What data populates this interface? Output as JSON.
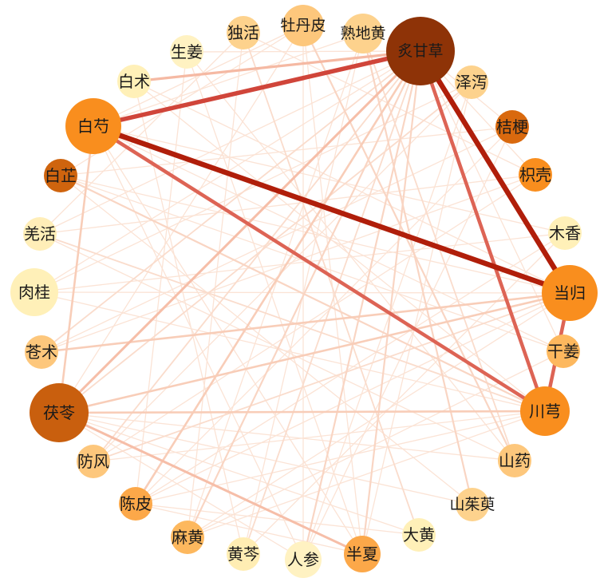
{
  "nodes": [
    {
      "id": "zhigancao",
      "label": "炙甘草",
      "color": "#8e3307"
    },
    {
      "id": "zexie",
      "label": "泽泻",
      "color": "#fdd28d"
    },
    {
      "id": "jiegeng",
      "label": "桔梗",
      "color": "#d9690e"
    },
    {
      "id": "zhiqiao",
      "label": "枳壳",
      "color": "#f98e1e"
    },
    {
      "id": "muxiang",
      "label": "木香",
      "color": "#fff0b8"
    },
    {
      "id": "danggui",
      "label": "当归",
      "color": "#f98e1e"
    },
    {
      "id": "ganjiang",
      "label": "干姜",
      "color": "#fdb85e"
    },
    {
      "id": "chuanxiong",
      "label": "川芎",
      "color": "#f98e1e"
    },
    {
      "id": "shanyao",
      "label": "山药",
      "color": "#fdc77c"
    },
    {
      "id": "shanzhuyu",
      "label": "山茱萸",
      "color": "#fdd28d"
    },
    {
      "id": "dahuang",
      "label": "大黄",
      "color": "#fff0b8"
    },
    {
      "id": "banxia",
      "label": "半夏",
      "color": "#fca849"
    },
    {
      "id": "renshen",
      "label": "人参",
      "color": "#fff2c2"
    },
    {
      "id": "huangqin",
      "label": "黄芩",
      "color": "#ffedb3"
    },
    {
      "id": "mahuang",
      "label": "麻黄",
      "color": "#fdb85e"
    },
    {
      "id": "chenpi",
      "label": "陈皮",
      "color": "#fca849"
    },
    {
      "id": "fangfeng",
      "label": "防风",
      "color": "#fdc77c"
    },
    {
      "id": "fuling",
      "label": "茯苓",
      "color": "#c95f0e"
    },
    {
      "id": "cangzhu",
      "label": "苍术",
      "color": "#fdc77c"
    },
    {
      "id": "rougui",
      "label": "肉桂",
      "color": "#fff0b8"
    },
    {
      "id": "qianghuo",
      "label": "羌活",
      "color": "#ffeeb8"
    },
    {
      "id": "baizhi",
      "label": "白芷",
      "color": "#cf640e"
    },
    {
      "id": "baishao",
      "label": "白芍",
      "color": "#f98e1e"
    },
    {
      "id": "baizhu",
      "label": "白术",
      "color": "#fff0b8"
    },
    {
      "id": "shengjiang",
      "label": "生姜",
      "color": "#fff2c2"
    },
    {
      "id": "duhuo",
      "label": "独活",
      "color": "#fdd28d"
    },
    {
      "id": "mudanpi",
      "label": "牡丹皮",
      "color": "#fdc77c"
    },
    {
      "id": "shudihuang",
      "label": "熟地黄",
      "color": "#fdd28d"
    }
  ],
  "edges": [
    {
      "a": "baishao",
      "b": "danggui",
      "color": "#b01e0a"
    },
    {
      "a": "zhigancao",
      "b": "danggui",
      "color": "#b01e0a"
    },
    {
      "a": "zhigancao",
      "b": "baishao",
      "color": "#d0453a"
    },
    {
      "a": "baishao",
      "b": "chuanxiong",
      "color": "#dd6455"
    },
    {
      "a": "zhigancao",
      "b": "chuanxiong",
      "color": "#dd6455"
    },
    {
      "a": "danggui",
      "b": "chuanxiong",
      "color": "#dd6455"
    },
    {
      "a": "zhigancao",
      "b": "baizhu",
      "color": "#f5b9a3"
    },
    {
      "a": "zhigancao",
      "b": "fuling",
      "color": "#f6bea8"
    },
    {
      "a": "baishao",
      "b": "fuling",
      "color": "#f8cdb8"
    },
    {
      "a": "fuling",
      "b": "danggui",
      "color": "#f8cdb8"
    },
    {
      "a": "cangzhu",
      "b": "danggui",
      "color": "#f8cdb8"
    },
    {
      "a": "fuling",
      "b": "chuanxiong",
      "color": "#f8cdb8"
    },
    {
      "a": "fuling",
      "b": "banxia",
      "color": "#f6bea8"
    },
    {
      "a": "chenpi",
      "b": "zhigancao",
      "color": "#f8cdb8"
    },
    {
      "a": "baizhi",
      "b": "chuanxiong",
      "color": "#f9d5c3"
    },
    {
      "a": "qianghuo",
      "b": "chuanxiong",
      "color": "#fadccc"
    },
    {
      "a": "mahuang",
      "b": "zhigancao",
      "color": "#f9d5c3"
    },
    {
      "a": "renshen",
      "b": "zhigancao",
      "color": "#f9d5c3"
    },
    {
      "a": "banxia",
      "b": "zhigancao",
      "color": "#f9d5c3"
    },
    {
      "a": "huangqin",
      "b": "zhigancao",
      "color": "#fadccc"
    },
    {
      "a": "fangfeng",
      "b": "danggui",
      "color": "#fadccc"
    },
    {
      "a": "mudanpi",
      "b": "shanyao",
      "color": "#f9d5c3"
    },
    {
      "a": "shudihuang",
      "b": "shanzhuyu",
      "color": "#f9d5c3"
    },
    {
      "a": "shudihuang",
      "b": "shanyao",
      "color": "#fadccc"
    },
    {
      "a": "zexie",
      "b": "fuling",
      "color": "#fadccc"
    },
    {
      "a": "duhuo",
      "b": "dahuang",
      "color": "#fadccc"
    },
    {
      "a": "shengjiang",
      "b": "chenpi",
      "color": "#fbe3d5"
    },
    {
      "a": "baizhu",
      "b": "danggui",
      "color": "#fbe3d5"
    },
    {
      "a": "baizhu",
      "b": "chuanxiong",
      "color": "#fbe3d5"
    },
    {
      "a": "zhigancao",
      "b": "shengjiang",
      "color": "#fbe3d5"
    },
    {
      "a": "zhigancao",
      "b": "cangzhu",
      "color": "#fadccc"
    },
    {
      "a": "zhigancao",
      "b": "fangfeng",
      "color": "#fadccc"
    },
    {
      "a": "zhigancao",
      "b": "jiegeng",
      "color": "#fbe3d5"
    },
    {
      "a": "zhigancao",
      "b": "zhiqiao",
      "color": "#fbe3d5"
    },
    {
      "a": "zhigancao",
      "b": "ganjiang",
      "color": "#fbe3d5"
    },
    {
      "a": "zhigancao",
      "b": "qianghuo",
      "color": "#fbe3d5"
    },
    {
      "a": "zhigancao",
      "b": "rougui",
      "color": "#fbe3d5"
    },
    {
      "a": "baishao",
      "b": "banxia",
      "color": "#fbe3d5"
    },
    {
      "a": "baishao",
      "b": "mudanpi",
      "color": "#fbe3d5"
    },
    {
      "a": "baishao",
      "b": "shudihuang",
      "color": "#fbe3d5"
    },
    {
      "a": "baishao",
      "b": "muxiang",
      "color": "#fbe3d5"
    },
    {
      "a": "baishao",
      "b": "ganjiang",
      "color": "#fbe3d5"
    },
    {
      "a": "baishao",
      "b": "renshen",
      "color": "#fbe3d5"
    },
    {
      "a": "danggui",
      "b": "chenpi",
      "color": "#fbe3d5"
    },
    {
      "a": "danggui",
      "b": "mahuang",
      "color": "#fbe3d5"
    },
    {
      "a": "danggui",
      "b": "rougui",
      "color": "#fbe3d5"
    },
    {
      "a": "danggui",
      "b": "baizhi",
      "color": "#fbe3d5"
    },
    {
      "a": "chuanxiong",
      "b": "fangfeng",
      "color": "#fbe3d5"
    },
    {
      "a": "chuanxiong",
      "b": "chenpi",
      "color": "#fbe3d5"
    },
    {
      "a": "chuanxiong",
      "b": "rougui",
      "color": "#fbe3d5"
    },
    {
      "a": "chuanxiong",
      "b": "mahuang",
      "color": "#fbe3d5"
    },
    {
      "a": "fuling",
      "b": "renshen",
      "color": "#fbe3d5"
    },
    {
      "a": "fuling",
      "b": "shanyao",
      "color": "#fbe3d5"
    },
    {
      "a": "fuling",
      "b": "shanzhuyu",
      "color": "#fbe3d5"
    },
    {
      "a": "fuling",
      "b": "dahuang",
      "color": "#fbe3d5"
    },
    {
      "a": "fuling",
      "b": "mudanpi",
      "color": "#fbe3d5"
    },
    {
      "a": "banxia",
      "b": "chenpi",
      "color": "#fbe3d5"
    },
    {
      "a": "banxia",
      "b": "mudanpi",
      "color": "#fbe3d5"
    },
    {
      "a": "banxia",
      "b": "shengjiang",
      "color": "#fbe3d5"
    },
    {
      "a": "banxia",
      "b": "zexie",
      "color": "#fbe3d5"
    },
    {
      "a": "mahuang",
      "b": "duhuo",
      "color": "#fbe3d5"
    },
    {
      "a": "mahuang",
      "b": "shudihuang",
      "color": "#fbe3d5"
    },
    {
      "a": "huangqin",
      "b": "shudihuang",
      "color": "#fbe3d5"
    },
    {
      "a": "huangqin",
      "b": "baizhu",
      "color": "#fbe3d5"
    },
    {
      "a": "renshen",
      "b": "mudanpi",
      "color": "#fbe3d5"
    },
    {
      "a": "renshen",
      "b": "jiegeng",
      "color": "#fbe3d5"
    },
    {
      "a": "renshen",
      "b": "zexie",
      "color": "#fbe3d5"
    },
    {
      "a": "dahuang",
      "b": "chenpi",
      "color": "#fbe3d5"
    },
    {
      "a": "shanyao",
      "b": "qianghuo",
      "color": "#fbe3d5"
    },
    {
      "a": "shanzhuyu",
      "b": "baizhi",
      "color": "#fbe3d5"
    },
    {
      "a": "fangfeng",
      "b": "zhiqiao",
      "color": "#fbe3d5"
    },
    {
      "a": "fangfeng",
      "b": "zexie",
      "color": "#fbe3d5"
    },
    {
      "a": "cangzhu",
      "b": "jiegeng",
      "color": "#fbe3d5"
    },
    {
      "a": "cangzhu",
      "b": "zhiqiao",
      "color": "#fbe3d5"
    },
    {
      "a": "rougui",
      "b": "muxiang",
      "color": "#fbe3d5"
    },
    {
      "a": "rougui",
      "b": "zexie",
      "color": "#fbe3d5"
    },
    {
      "a": "qianghuo",
      "b": "duhuo",
      "color": "#fbe3d5"
    },
    {
      "a": "qianghuo",
      "b": "zhiqiao",
      "color": "#fbe3d5"
    },
    {
      "a": "baizhi",
      "b": "jiegeng",
      "color": "#fbe3d5"
    },
    {
      "a": "baizhi",
      "b": "mudanpi",
      "color": "#fbe3d5"
    },
    {
      "a": "baizhi",
      "b": "ganjiang",
      "color": "#fbe3d5"
    },
    {
      "a": "shengjiang",
      "b": "shanyao",
      "color": "#fbe3d5"
    },
    {
      "a": "duhuo",
      "b": "zhiqiao",
      "color": "#fbe3d5"
    },
    {
      "a": "chenpi",
      "b": "muxiang",
      "color": "#fbe3d5"
    },
    {
      "a": "chenpi",
      "b": "jiegeng",
      "color": "#fbe3d5"
    },
    {
      "a": "mahuang",
      "b": "ganjiang",
      "color": "#fbe3d5"
    },
    {
      "a": "huangqin",
      "b": "muxiang",
      "color": "#fbe3d5"
    }
  ]
}
